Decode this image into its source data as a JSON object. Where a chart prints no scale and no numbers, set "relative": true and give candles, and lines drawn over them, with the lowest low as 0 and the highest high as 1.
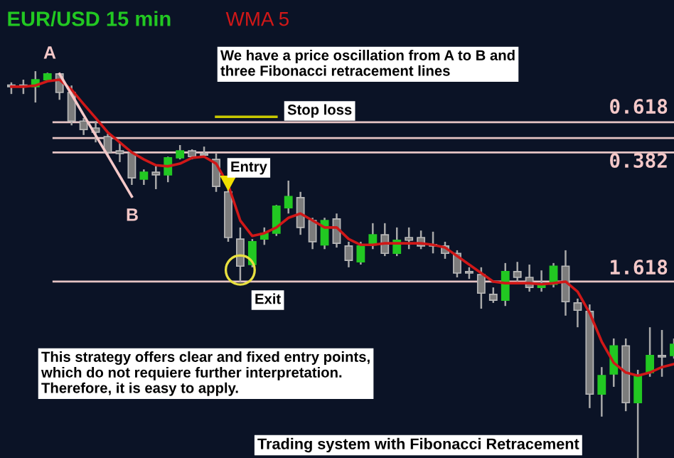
{
  "chart_data": {
    "type": "candlestick",
    "relative": true,
    "title": "EUR/USD 15 min",
    "categories": [
      null,
      null,
      null,
      null,
      null,
      null,
      null,
      null,
      null,
      null,
      null,
      null,
      null,
      null,
      null,
      null,
      null,
      null,
      null,
      null,
      null,
      null,
      null,
      null,
      null,
      null,
      null,
      null,
      null,
      null,
      null,
      null,
      null,
      null,
      null,
      null,
      null,
      null,
      null,
      null,
      null,
      null,
      null,
      null,
      null,
      null,
      null,
      null,
      null,
      null,
      null,
      null,
      null,
      null,
      null,
      null
    ],
    "ohlc": [
      [
        0.963,
        0.971,
        0.941,
        0.96
      ],
      [
        0.963,
        0.978,
        0.941,
        0.96
      ],
      [
        0.96,
        1,
        0.919,
        0.978
      ],
      [
        0.978,
        0.996,
        0.974,
        0.993
      ],
      [
        0.993,
        0.993,
        0.926,
        0.945
      ],
      [
        0.945,
        0.963,
        0.86,
        0.871
      ],
      [
        0.871,
        0.879,
        0.835,
        0.849
      ],
      [
        0.853,
        0.871,
        0.816,
        0.842
      ],
      [
        0.831,
        0.838,
        0.779,
        0.79
      ],
      [
        0.794,
        0.816,
        0.765,
        0.787
      ],
      [
        0.79,
        0.79,
        0.706,
        0.724
      ],
      [
        0.721,
        0.746,
        0.706,
        0.739
      ],
      [
        0.739,
        0.757,
        0.695,
        0.732
      ],
      [
        0.732,
        0.779,
        0.713,
        0.776
      ],
      [
        0.776,
        0.809,
        0.772,
        0.794
      ],
      [
        0.794,
        0.798,
        0.772,
        0.779
      ],
      [
        0.787,
        0.805,
        0.779,
        0.783
      ],
      [
        0.772,
        0.787,
        0.688,
        0.702
      ],
      [
        0.688,
        0.695,
        0.559,
        0.57
      ],
      [
        0.566,
        0.596,
        0.456,
        0.496
      ],
      [
        0.5,
        0.566,
        0.493,
        0.559
      ],
      [
        0.566,
        0.596,
        0.551,
        0.581
      ],
      [
        0.581,
        0.654,
        0.574,
        0.651
      ],
      [
        0.647,
        0.717,
        0.632,
        0.676
      ],
      [
        0.673,
        0.688,
        0.577,
        0.596
      ],
      [
        0.614,
        0.621,
        0.54,
        0.559
      ],
      [
        0.551,
        0.621,
        0.54,
        0.614
      ],
      [
        0.618,
        0.632,
        0.544,
        0.555
      ],
      [
        0.548,
        0.559,
        0.493,
        0.511
      ],
      [
        0.507,
        0.559,
        0.5,
        0.548
      ],
      [
        0.551,
        0.607,
        0.54,
        0.577
      ],
      [
        0.577,
        0.607,
        0.522,
        0.529
      ],
      [
        0.529,
        0.596,
        0.522,
        0.563
      ],
      [
        0.57,
        0.596,
        0.54,
        0.563
      ],
      [
        0.57,
        0.588,
        0.54,
        0.548
      ],
      [
        0.551,
        0.585,
        0.529,
        0.548
      ],
      [
        0.548,
        0.559,
        0.515,
        0.529
      ],
      [
        0.529,
        0.537,
        0.467,
        0.478
      ],
      [
        0.482,
        0.493,
        0.463,
        0.478
      ],
      [
        0.474,
        0.493,
        0.386,
        0.426
      ],
      [
        0.423,
        0.441,
        0.401,
        0.408
      ],
      [
        0.408,
        0.504,
        0.393,
        0.482
      ],
      [
        0.482,
        0.507,
        0.456,
        0.467
      ],
      [
        0.467,
        0.5,
        0.43,
        0.441
      ],
      [
        0.441,
        0.485,
        0.43,
        0.449
      ],
      [
        0.449,
        0.504,
        0.441,
        0.496
      ],
      [
        0.496,
        0.537,
        0.368,
        0.404
      ],
      [
        0.401,
        0.412,
        0.338,
        0.382
      ],
      [
        0.379,
        0.397,
        0.129,
        0.165
      ],
      [
        0.165,
        0.235,
        0.107,
        0.213
      ],
      [
        0.217,
        0.309,
        0.184,
        0.29
      ],
      [
        0.29,
        0.309,
        0.121,
        0.143
      ],
      [
        0.143,
        0.228,
        0,
        0.213
      ],
      [
        0.221,
        0.338,
        0.21,
        0.265
      ],
      [
        0.265,
        0.331,
        0.21,
        0.261
      ],
      [
        0.265,
        0.309,
        0.257,
        0.294
      ]
    ],
    "colors": [
      "#7c7c7c",
      "#7c7c7c",
      "#22c822",
      "#22c822",
      "#7c7c7c",
      "#7c7c7c",
      "#7c7c7c",
      "#7c7c7c",
      "#7c7c7c",
      "#7c7c7c",
      "#7c7c7c",
      "#22c822",
      "#7c7c7c",
      "#22c822",
      "#22c822",
      "#7c7c7c",
      "#7c7c7c",
      "#7c7c7c",
      "#7c7c7c",
      "#7c7c7c",
      "#22c822",
      "#22c822",
      "#22c822",
      "#22c822",
      "#7c7c7c",
      "#7c7c7c",
      "#22c822",
      "#7c7c7c",
      "#7c7c7c",
      "#22c822",
      "#22c822",
      "#7c7c7c",
      "#22c822",
      "#7c7c7c",
      "#7c7c7c",
      "#7c7c7c",
      "#7c7c7c",
      "#7c7c7c",
      "#7c7c7c",
      "#7c7c7c",
      "#7c7c7c",
      "#22c822",
      "#7c7c7c",
      "#7c7c7c",
      "#22c822",
      "#22c822",
      "#7c7c7c",
      "#7c7c7c",
      "#7c7c7c",
      "#22c822",
      "#22c822",
      "#7c7c7c",
      "#22c822",
      "#22c822",
      "#7c7c7c",
      "#22c822"
    ],
    "series": [
      {
        "name": "WMA 5",
        "type": "line",
        "color": "#d01818",
        "values": [
          0.96,
          0.96,
          0.963,
          0.974,
          0.978,
          0.952,
          0.915,
          0.879,
          0.842,
          0.816,
          0.79,
          0.772,
          0.757,
          0.754,
          0.761,
          0.776,
          0.779,
          0.761,
          0.706,
          0.614,
          0.574,
          0.581,
          0.596,
          0.621,
          0.632,
          0.614,
          0.596,
          0.596,
          0.566,
          0.551,
          0.551,
          0.555,
          0.555,
          0.555,
          0.555,
          0.551,
          0.544,
          0.522,
          0.5,
          0.478,
          0.456,
          0.452,
          0.452,
          0.452,
          0.449,
          0.452,
          0.456,
          0.43,
          0.375,
          0.301,
          0.246,
          0.221,
          0.213,
          0.221,
          0.235,
          0.243
        ]
      },
      {
        "type": "line",
        "color": "#f4c8c8",
        "values": [
          null,
          null,
          null,
          null,
          0.993,
          0.94,
          0.887,
          0.834,
          0.782,
          0.729,
          0.676,
          null,
          null,
          null,
          null,
          null,
          null,
          null,
          null,
          null,
          null,
          null,
          null,
          null,
          null,
          null,
          null,
          null,
          null,
          null,
          null,
          null,
          null,
          null,
          null,
          null,
          null,
          null,
          null,
          null,
          null,
          null,
          null,
          null,
          null,
          null,
          null,
          null,
          null,
          null,
          null,
          null,
          null,
          null,
          null,
          null
        ]
      },
      {
        "type": "line",
        "color": "#c8c800",
        "values": [
          null,
          null,
          null,
          null,
          null,
          null,
          null,
          null,
          null,
          null,
          null,
          null,
          null,
          null,
          null,
          null,
          null,
          0.882,
          0.882,
          0.882,
          0.882,
          0.882,
          0.882,
          null,
          null,
          null,
          null,
          null,
          null,
          null,
          null,
          null,
          null,
          null,
          null,
          null,
          null,
          null,
          null,
          null,
          null,
          null,
          null,
          null,
          null,
          null,
          null,
          null,
          null,
          null,
          null,
          null,
          null,
          null,
          null,
          null
        ]
      }
    ],
    "ref_lines": [
      {
        "axis": "y",
        "value": 0.868,
        "color": "#e6c4c4"
      },
      {
        "axis": "y",
        "value": 0.827,
        "color": "#e6c4c4"
      },
      {
        "axis": "y",
        "value": 0.79,
        "color": "#e6c4c4"
      },
      {
        "axis": "y",
        "value": 0.456,
        "color": "#e6c4c4"
      }
    ],
    "annotations": [
      "A",
      "B",
      "We have a price oscillation from A to B and\nthree Fibonacci retracement lines",
      "Stop loss",
      "Entry",
      "Exit",
      "This strategy offers clear and fixed entry points,\nwhich do not requiere further interpretation.\nTherefore, it is easy to apply.",
      "Trading system with Fibonacci Retracement",
      "0.618",
      "0.382",
      "1.618"
    ]
  }
}
